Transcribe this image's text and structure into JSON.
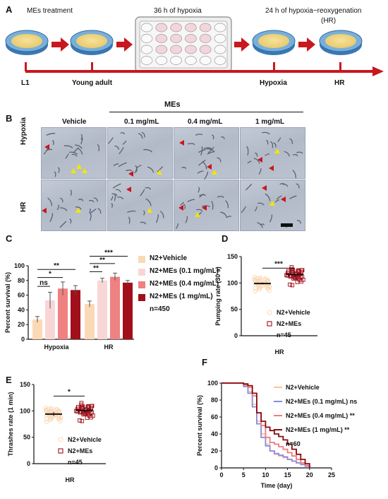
{
  "panel_a": {
    "label": "A",
    "mes_treatment": "MEs treatment",
    "hypoxia_36h": "36 h of hypoxia",
    "hr_24h": "24 h of hypoxia−reoxygenation",
    "hr_paren": "(HR)",
    "timeline": [
      "L1",
      "Young adult",
      "Hypoxia",
      "HR"
    ]
  },
  "panel_b": {
    "label": "B",
    "mes_header": "MEs",
    "columns": [
      "Vehicle",
      "0.1 mg/mL",
      "0.4 mg/mL",
      "1 mg/mL"
    ],
    "rows": [
      "Hypoxia",
      "HR"
    ]
  },
  "panel_c": {
    "label": "C",
    "legend": [
      "N2+Vehicle",
      "N2+MEs (0.1 mg/mL)",
      "N2+MEs (0.4 mg/mL)",
      "N2+MEs (1 mg/mL)"
    ],
    "n_text": "n=450",
    "sig_hypoxia": [
      "**",
      "*",
      "ns"
    ],
    "sig_hr": [
      "***",
      "**",
      "**"
    ]
  },
  "panel_d": {
    "label": "D",
    "legend": [
      "N2+Vehicle",
      "N2+MEs"
    ],
    "n_text": "n=45",
    "sig": "***"
  },
  "panel_e": {
    "label": "E",
    "legend": [
      "N2+Vehicle",
      "N2+MEs"
    ],
    "n_text": "n=45",
    "sig": "*"
  },
  "panel_f": {
    "label": "F",
    "legend": [
      "N2+Vehicle",
      "N2+MEs (0.1 mg/mL) ns",
      "N2+MEs (0.4 mg/mL) **",
      "N2+MEs (1 mg/mL) **"
    ],
    "n_text": "n=60"
  },
  "colors": {
    "vehicle": "#fbd9b7",
    "mes_01": "#f9d6d6",
    "mes_04": "#ef8181",
    "mes_1": "#a10f1a",
    "arrow_red": "#c8171e",
    "tri_yellow": "#f2e600",
    "dish_blue": "#4f8fc6",
    "km_01": "#8a8ae0",
    "km_04": "#f07b7b",
    "km_1": "#8b0b12",
    "km_vehicle": "#f7c49a"
  },
  "chart_data": [
    {
      "type": "bar",
      "title": "",
      "xlabel": "",
      "ylabel": "Percent survival (%)",
      "ylim": [
        0,
        100
      ],
      "yticks": [
        0,
        20,
        40,
        60,
        80,
        100
      ],
      "categories": [
        "Hypoxia",
        "HR"
      ],
      "series": [
        {
          "name": "N2+Vehicle",
          "values": [
            27,
            48
          ],
          "errors": [
            4,
            4
          ]
        },
        {
          "name": "N2+MEs (0.1 mg/mL)",
          "values": [
            53,
            80
          ],
          "errors": [
            11,
            3
          ]
        },
        {
          "name": "N2+MEs (0.4 mg/mL)",
          "values": [
            69,
            85
          ],
          "errors": [
            9,
            5
          ]
        },
        {
          "name": "N2+MEs (1 mg/mL)",
          "values": [
            67,
            77
          ],
          "errors": [
            6,
            3
          ]
        }
      ]
    },
    {
      "type": "scatter",
      "title": "",
      "xlabel": "HR",
      "ylabel": "Pumping rate (30 s)",
      "ylim": [
        0,
        150
      ],
      "yticks": [
        0,
        50,
        100,
        150
      ],
      "series": [
        {
          "name": "N2+Vehicle",
          "mean": 99,
          "sem": 1
        },
        {
          "name": "N2+MEs",
          "mean": 116,
          "sem": 2
        }
      ]
    },
    {
      "type": "scatter",
      "title": "",
      "xlabel": "HR",
      "ylabel": "Thrashes rate (1 min)",
      "ylim": [
        0,
        150
      ],
      "yticks": [
        0,
        50,
        100,
        150
      ],
      "series": [
        {
          "name": "N2+Vehicle",
          "mean": 94,
          "sem": 2
        },
        {
          "name": "N2+MEs",
          "mean": 101,
          "sem": 2
        }
      ]
    },
    {
      "type": "line",
      "title": "",
      "xlabel": "Time (day)",
      "ylabel": "Percent survival (%)",
      "xlim": [
        0,
        25
      ],
      "ylim": [
        0,
        100
      ],
      "xticks": [
        0,
        5,
        10,
        15,
        20,
        25
      ],
      "yticks": [
        0,
        20,
        40,
        60,
        80,
        100
      ],
      "series": [
        {
          "name": "N2+Vehicle",
          "x": [
            0,
            4,
            5,
            6,
            7,
            8,
            9,
            10,
            11,
            12,
            13,
            14,
            15,
            16,
            17,
            18,
            19,
            20
          ],
          "y": [
            100,
            100,
            97,
            90,
            75,
            55,
            40,
            28,
            20,
            16,
            14,
            12,
            10,
            8,
            6,
            4,
            2,
            0
          ]
        },
        {
          "name": "N2+MEs (0.1 mg/mL) ns",
          "x": [
            0,
            4,
            5,
            6,
            7,
            8,
            9,
            10,
            11,
            12,
            13,
            14,
            15,
            16,
            17,
            18,
            19,
            20
          ],
          "y": [
            100,
            100,
            96,
            88,
            72,
            52,
            36,
            26,
            20,
            17,
            15,
            13,
            10,
            8,
            6,
            4,
            2,
            0
          ]
        },
        {
          "name": "N2+MEs (0.4 mg/mL) **",
          "x": [
            0,
            4,
            5,
            6,
            7,
            8,
            9,
            10,
            11,
            12,
            13,
            14,
            15,
            16,
            17,
            18,
            19,
            20
          ],
          "y": [
            100,
            100,
            98,
            95,
            85,
            65,
            50,
            36,
            30,
            28,
            25,
            22,
            18,
            14,
            10,
            6,
            3,
            0
          ]
        },
        {
          "name": "N2+MEs (1 mg/mL) **",
          "x": [
            0,
            4,
            5,
            6,
            7,
            8,
            9,
            10,
            11,
            12,
            13,
            14,
            15,
            16,
            17,
            18,
            19,
            20
          ],
          "y": [
            100,
            100,
            99,
            97,
            88,
            65,
            55,
            48,
            44,
            40,
            37,
            33,
            28,
            22,
            16,
            10,
            5,
            0
          ]
        }
      ]
    }
  ]
}
